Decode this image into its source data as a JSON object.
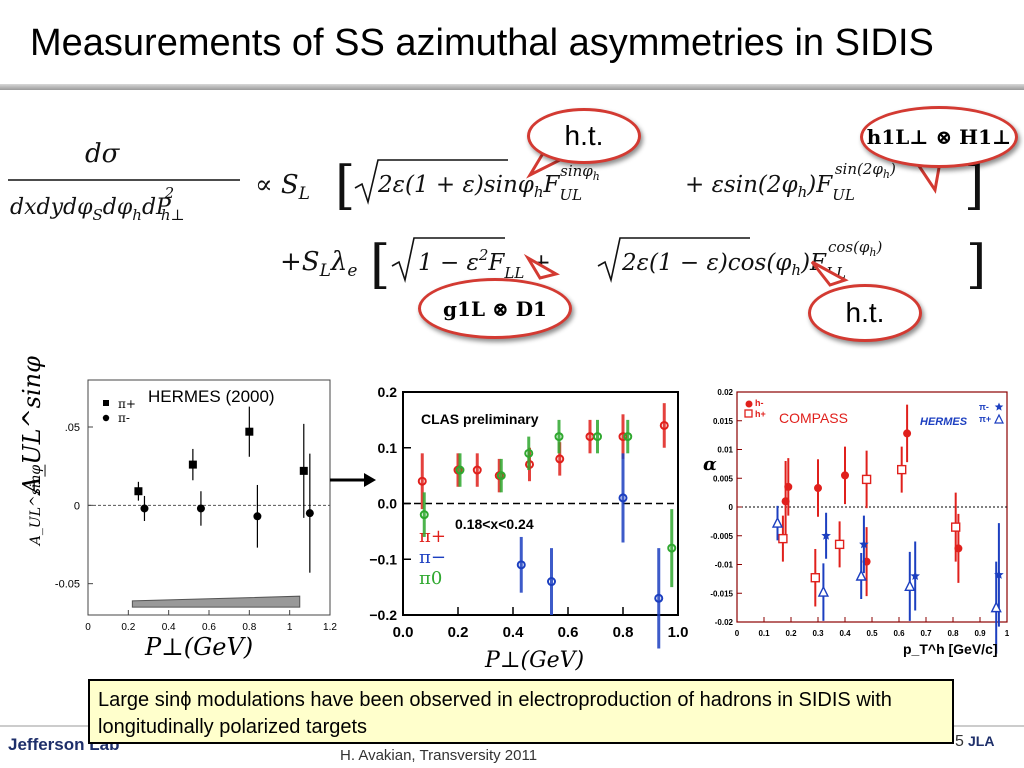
{
  "slide": {
    "title": "Measurements of SS azimuthal asymmetries in SIDIS",
    "footer_text": "H. Avakian, Transversity 2011",
    "page_number": "5",
    "logo_left": "Jefferson Lab",
    "logo_right": "JLA"
  },
  "equation": {
    "lhs_num": "dσ",
    "lhs_den": "dxdydφ",
    "line1": "∝ S",
    "line1_full": "√2ε(1+ε) sinφh F_UL^sinφh + ε sin(2φh) F_UL^sin(2φh)",
    "line2_full": "+S_L λ_e [ √1−ε² F_LL + √2ε(1−ε) cos(φh) F_LL^cos(φh) ]"
  },
  "bubbles": {
    "ht1": "h.t.",
    "ht2": "h.t.",
    "h1l": "h1L⊥ ⊗ H1⊥",
    "g1l": "g1L ⊗ D1"
  },
  "summary": {
    "text": "Large sinϕ modulations have been observed in electroproduction of hadrons in SIDIS with longitudinally polarized  targets"
  },
  "colors": {
    "bubble_border": "#d33a32",
    "summary_bg": "#ffffcc",
    "pi_plus": "#e0201c",
    "pi_minus": "#1c3fc0",
    "pi_zero": "#2fa82f"
  },
  "chart_data": [
    {
      "type": "scatter",
      "title": "HERMES (2000)",
      "xlabel": "P⊥(GeV)",
      "ylabel": "A_UL^sinφ",
      "xlim": [
        0,
        1.2
      ],
      "ylim": [
        -0.07,
        0.08
      ],
      "x_ticks": [
        "0",
        "0.2",
        "0.4",
        "0.6",
        "0.8",
        "1",
        "1.2"
      ],
      "y_ticks": [
        "-0.05",
        "0",
        ".05"
      ],
      "legend": [
        "π+",
        "π-"
      ],
      "series": [
        {
          "name": "π+",
          "marker": "square",
          "points": [
            [
              0.25,
              0.009
            ],
            [
              0.52,
              0.026
            ],
            [
              0.8,
              0.047
            ],
            [
              1.07,
              0.022
            ]
          ],
          "errors": [
            0.006,
            0.01,
            0.016,
            0.03
          ]
        },
        {
          "name": "π-",
          "marker": "circle",
          "points": [
            [
              0.28,
              -0.002
            ],
            [
              0.56,
              -0.002
            ],
            [
              0.84,
              -0.007
            ],
            [
              1.1,
              -0.005
            ]
          ],
          "errors": [
            0.008,
            0.011,
            0.02,
            0.038
          ]
        }
      ]
    },
    {
      "type": "scatter",
      "title": "CLAS preliminary",
      "annotation": "0.18<x<0.24",
      "xlabel": "P⊥(GeV)",
      "xlim": [
        0.0,
        1.0
      ],
      "ylim": [
        -0.2,
        0.2
      ],
      "x_ticks": [
        "0.0",
        "0.2",
        "0.4",
        "0.6",
        "0.8",
        "1.0"
      ],
      "y_ticks": [
        "0.2",
        "0.1",
        "0.0",
        "−0.1",
        "−0.2"
      ],
      "legend": [
        "π+",
        "π−",
        "π0"
      ],
      "series": [
        {
          "name": "π+",
          "points": [
            [
              0.07,
              0.04
            ],
            [
              0.2,
              0.06
            ],
            [
              0.27,
              0.06
            ],
            [
              0.35,
              0.05
            ],
            [
              0.46,
              0.07
            ],
            [
              0.57,
              0.08
            ],
            [
              0.68,
              0.12
            ],
            [
              0.8,
              0.12
            ],
            [
              0.95,
              0.14
            ]
          ],
          "errors": [
            0.05,
            0.03,
            0.03,
            0.03,
            0.03,
            0.03,
            0.03,
            0.04,
            0.04
          ]
        },
        {
          "name": "π−",
          "points": [
            [
              0.43,
              -0.11
            ],
            [
              0.54,
              -0.14
            ],
            [
              0.8,
              0.01
            ],
            [
              0.93,
              -0.17
            ]
          ],
          "errors": [
            0.05,
            0.06,
            0.08,
            0.09
          ]
        },
        {
          "name": "π0",
          "points": [
            [
              0.07,
              -0.02
            ],
            [
              0.2,
              0.06
            ],
            [
              0.35,
              0.05
            ],
            [
              0.45,
              0.09
            ],
            [
              0.56,
              0.12
            ],
            [
              0.7,
              0.12
            ],
            [
              0.81,
              0.12
            ],
            [
              0.97,
              -0.08
            ]
          ],
          "errors": [
            0.04,
            0.03,
            0.03,
            0.03,
            0.03,
            0.03,
            0.03,
            0.07
          ]
        }
      ]
    },
    {
      "type": "scatter",
      "title": "COMPASS",
      "title2": "HERMES",
      "xlabel": "p_T^h [GeV/c]",
      "ylabel": "α",
      "xlim": [
        0,
        1.0
      ],
      "ylim": [
        -0.02,
        0.02
      ],
      "x_ticks": [
        "0",
        "0.1",
        "0.2",
        "0.3",
        "0.4",
        "0.5",
        "0.6",
        "0.7",
        "0.8",
        "0.9",
        "1"
      ],
      "y_ticks": [
        "0.02",
        "0.015",
        "0.01",
        "0.005",
        "0",
        "-0.005",
        "-0.01",
        "-0.015",
        "-0.02"
      ],
      "legend": [
        "h-",
        "h+",
        "π-",
        "π+"
      ],
      "series": [
        {
          "name": "h-",
          "marker": "filled-circle",
          "points": [
            [
              0.18,
              0.001
            ],
            [
              0.19,
              0.0035
            ],
            [
              0.3,
              0.0033
            ],
            [
              0.4,
              0.0055
            ],
            [
              0.48,
              -0.0095
            ],
            [
              0.63,
              0.0128
            ],
            [
              0.82,
              -0.0072
            ]
          ],
          "errors": [
            0.007,
            0.005,
            0.005,
            0.005,
            0.006,
            0.005,
            0.006
          ]
        },
        {
          "name": "h+",
          "marker": "open-square",
          "points": [
            [
              0.17,
              -0.0055
            ],
            [
              0.29,
              -0.0123
            ],
            [
              0.38,
              -0.0065
            ],
            [
              0.48,
              0.0048
            ],
            [
              0.61,
              0.0065
            ],
            [
              0.81,
              -0.0035
            ]
          ],
          "errors": [
            0.004,
            0.005,
            0.004,
            0.005,
            0.004,
            0.006
          ]
        },
        {
          "name": "π-",
          "marker": "star",
          "points": [
            [
              0.33,
              -0.005
            ],
            [
              0.47,
              -0.0065
            ],
            [
              0.66,
              -0.012
            ],
            [
              0.97,
              -0.0118
            ]
          ],
          "errors": [
            0.004,
            0.005,
            0.006,
            0.009
          ]
        },
        {
          "name": "π+",
          "marker": "open-triangle",
          "points": [
            [
              0.15,
              -0.0028
            ],
            [
              0.32,
              -0.0148
            ],
            [
              0.46,
              -0.012
            ],
            [
              0.64,
              -0.0138
            ],
            [
              0.96,
              -0.0175
            ]
          ],
          "errors": [
            0.003,
            0.005,
            0.004,
            0.006,
            0.008
          ]
        }
      ]
    }
  ]
}
